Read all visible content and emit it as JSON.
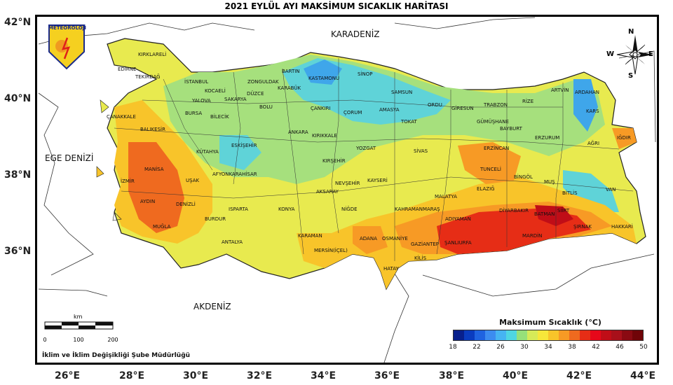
{
  "title": "2021 EYLÜL AYI MAKSİMUM SICAKLIK HARİTASI",
  "lat_labels": [
    "42°N",
    "40°N",
    "38°N",
    "36°N"
  ],
  "lon_labels": [
    "26°E",
    "28°E",
    "30°E",
    "32°E",
    "34°E",
    "36°E",
    "38°E",
    "40°E",
    "42°E",
    "44°E"
  ],
  "seas": {
    "north": "KARADENİZ",
    "west": "EGE DENİZİ",
    "south": "AKDENİZ"
  },
  "logo_text": "METEOROLOJİ",
  "compass": {
    "n": "N",
    "s": "S",
    "e": "E",
    "w": "W"
  },
  "scale": {
    "unit": "km",
    "ticks": [
      "0",
      "100",
      "200"
    ]
  },
  "credit": "İklim ve İklim Değişikliği Şube Müdürlüğü",
  "legend": {
    "title": "Maksimum Sıcaklık (°C)",
    "ticks": [
      "18",
      "22",
      "26",
      "30",
      "34",
      "38",
      "42",
      "46",
      "50"
    ],
    "colors": [
      "#08208c",
      "#0a3cbf",
      "#1f63e0",
      "#3c8cf0",
      "#46b4f2",
      "#4fd6e2",
      "#96e07a",
      "#d6ea58",
      "#f7e73a",
      "#f8c42a",
      "#f79a25",
      "#ef6a1f",
      "#e62d16",
      "#e6081a",
      "#c00d17",
      "#a8101a",
      "#8a0a12",
      "#700408"
    ]
  },
  "provinces": [
    "KIRKLARELİ",
    "EDİRNE",
    "TEKİRDAĞ",
    "İSTANBUL",
    "KOCAELİ",
    "ZONGULDAK",
    "BARTIN",
    "KASTAMONU",
    "SİNOP",
    "KARABÜK",
    "DÜZCE",
    "SAKARYA",
    "YALOVA",
    "BOLU",
    "ÇANKIRI",
    "ÇORUM",
    "SAMSUN",
    "AMASYA",
    "ORDU",
    "GİRESUN",
    "TRABZON",
    "RİZE",
    "ARTVİN",
    "ARDAHAN",
    "KARS",
    "IĞDIR",
    "AĞRI",
    "ERZURUM",
    "BAYBURT",
    "GÜMÜŞHANE",
    "ÇANAKKALE",
    "BALIKESİR",
    "BURSA",
    "BİLECİK",
    "ESKİŞEHİR",
    "ANKARA",
    "KIRIKKALE",
    "YOZGAT",
    "TOKAT",
    "SİVAS",
    "ERZİNCAN",
    "TUNCELİ",
    "BİNGÖL",
    "MUŞ",
    "BİTLİS",
    "VAN",
    "KÜTAHYA",
    "AFYONKARAHİSAR",
    "KIRŞEHİR",
    "KAYSERİ",
    "MALATYA",
    "ELAZIĞ",
    "DİYARBAKIR",
    "BATMAN",
    "SİİRT",
    "ŞIRNAK",
    "HAKKARİ",
    "MARDİN",
    "ŞANLIURFA",
    "ADIYAMAN",
    "KAHRAMANMARAŞ",
    "GAZİANTEP",
    "KİLİS",
    "OSMANİYE",
    "ADANA",
    "HATAY",
    "MERSİN(İÇEL)",
    "KARAMAN",
    "KONYA",
    "AKSARAY",
    "NEVŞEHİR",
    "NİĞDE",
    "ISPARTA",
    "BURDUR",
    "ANTALYA",
    "DENİZLİ",
    "UŞAK",
    "MANİSA",
    "İZMİR",
    "AYDIN",
    "MUĞLA"
  ]
}
